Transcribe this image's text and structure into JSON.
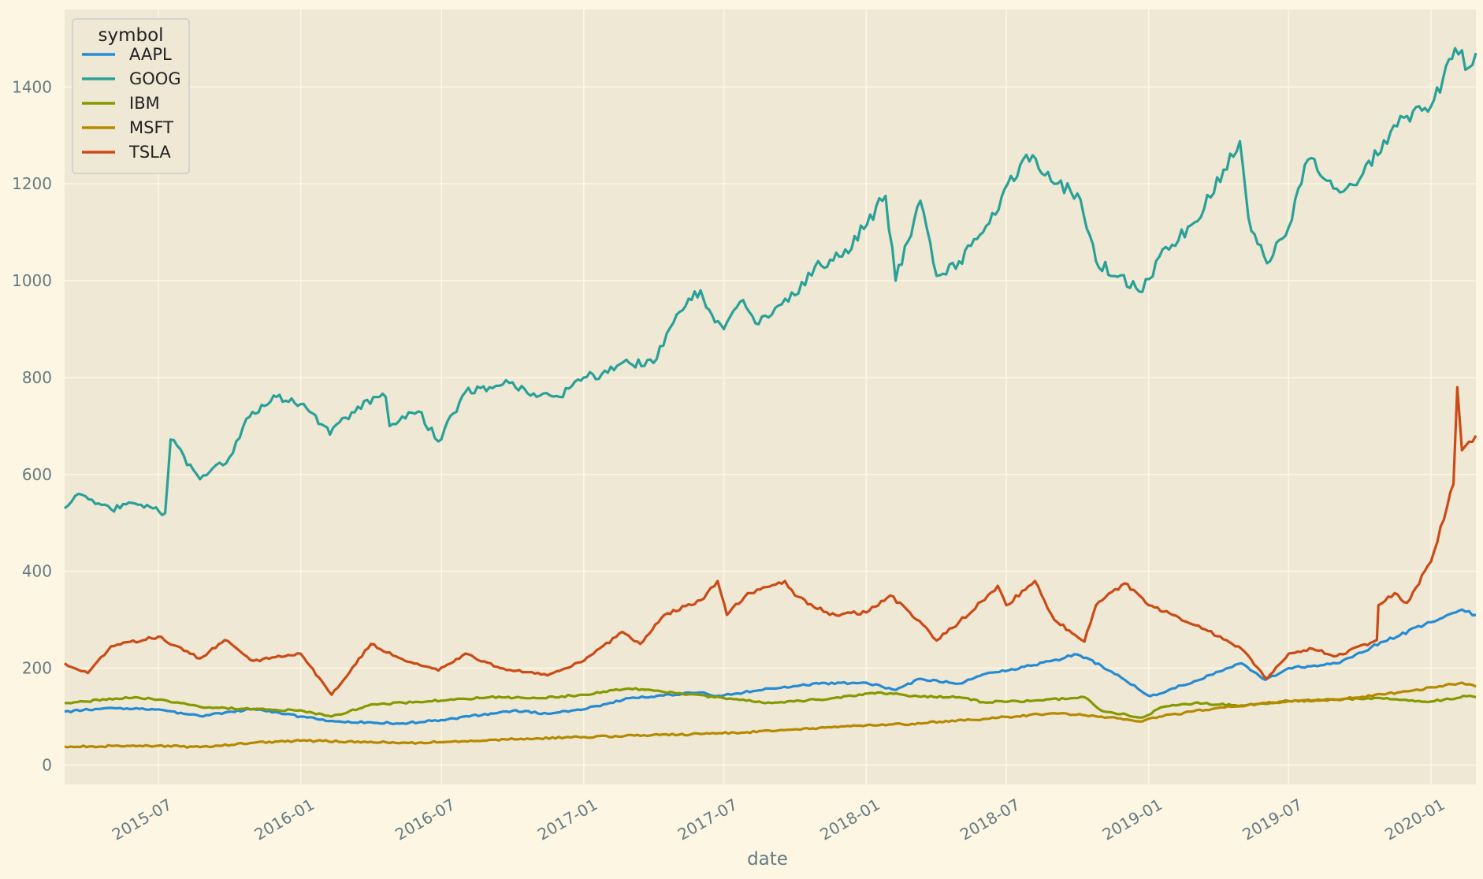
{
  "chart_data": {
    "type": "line",
    "xlabel": "date",
    "ylabel": "",
    "x_axis_type": "date",
    "xlim": [
      "2015-03-02",
      "2020-02-28"
    ],
    "ylim": [
      -40,
      1560
    ],
    "x_ticks": [
      "2015-07",
      "2016-01",
      "2016-07",
      "2017-01",
      "2017-07",
      "2018-01",
      "2018-07",
      "2019-01",
      "2019-07",
      "2020-01"
    ],
    "y_ticks": [
      "0",
      "200",
      "400",
      "600",
      "800",
      "1000",
      "1200",
      "1400"
    ],
    "grid": true,
    "legend": {
      "title": "symbol",
      "position": "top-left"
    },
    "colors": {
      "background": "#fdf6e3",
      "plot_background": "#eee8d5",
      "grid": "#fdf6e3"
    },
    "series": [
      {
        "name": "AAPL",
        "color": "#268bd2",
        "points": [
          [
            "2015-03-02",
            110
          ],
          [
            "2015-05-01",
            118
          ],
          [
            "2015-07-01",
            115
          ],
          [
            "2015-08-24",
            101
          ],
          [
            "2015-11-01",
            116
          ],
          [
            "2016-01-01",
            100
          ],
          [
            "2016-02-15",
            90
          ],
          [
            "2016-05-12",
            86
          ],
          [
            "2016-07-01",
            93
          ],
          [
            "2016-10-01",
            112
          ],
          [
            "2016-11-15",
            106
          ],
          [
            "2017-01-01",
            115
          ],
          [
            "2017-03-01",
            138
          ],
          [
            "2017-06-01",
            150
          ],
          [
            "2017-06-20",
            142
          ],
          [
            "2017-09-01",
            158
          ],
          [
            "2017-11-01",
            168
          ],
          [
            "2018-01-01",
            170
          ],
          [
            "2018-02-08",
            155
          ],
          [
            "2018-03-12",
            178
          ],
          [
            "2018-05-01",
            168
          ],
          [
            "2018-06-01",
            187
          ],
          [
            "2018-08-02",
            205
          ],
          [
            "2018-10-01",
            228
          ],
          [
            "2018-11-01",
            205
          ],
          [
            "2018-12-01",
            176
          ],
          [
            "2019-01-03",
            142
          ],
          [
            "2019-03-01",
            173
          ],
          [
            "2019-05-01",
            210
          ],
          [
            "2019-06-01",
            176
          ],
          [
            "2019-07-01",
            200
          ],
          [
            "2019-09-01",
            210
          ],
          [
            "2019-11-01",
            255
          ],
          [
            "2020-01-01",
            295
          ],
          [
            "2020-02-10",
            321
          ],
          [
            "2020-02-28",
            310
          ]
        ]
      },
      {
        "name": "GOOG",
        "color": "#2aa198",
        "points": [
          [
            "2015-03-02",
            530
          ],
          [
            "2015-03-20",
            560
          ],
          [
            "2015-04-15",
            540
          ],
          [
            "2015-05-01",
            528
          ],
          [
            "2015-06-01",
            540
          ],
          [
            "2015-07-10",
            520
          ],
          [
            "2015-07-17",
            672
          ],
          [
            "2015-08-24",
            590
          ],
          [
            "2015-10-01",
            635
          ],
          [
            "2015-10-23",
            715
          ],
          [
            "2015-12-01",
            760
          ],
          [
            "2016-01-01",
            745
          ],
          [
            "2016-02-01",
            700
          ],
          [
            "2016-02-08",
            682
          ],
          [
            "2016-03-15",
            740
          ],
          [
            "2016-04-20",
            760
          ],
          [
            "2016-04-25",
            700
          ],
          [
            "2016-06-01",
            730
          ],
          [
            "2016-06-27",
            668
          ],
          [
            "2016-08-01",
            770
          ],
          [
            "2016-09-01",
            780
          ],
          [
            "2016-10-01",
            790
          ],
          [
            "2016-11-01",
            760
          ],
          [
            "2016-12-01",
            760
          ],
          [
            "2017-01-01",
            800
          ],
          [
            "2017-02-01",
            810
          ],
          [
            "2017-03-01",
            830
          ],
          [
            "2017-04-01",
            830
          ],
          [
            "2017-05-01",
            930
          ],
          [
            "2017-06-01",
            980
          ],
          [
            "2017-06-12",
            940
          ],
          [
            "2017-07-01",
            900
          ],
          [
            "2017-07-26",
            960
          ],
          [
            "2017-08-15",
            910
          ],
          [
            "2017-09-01",
            930
          ],
          [
            "2017-10-01",
            970
          ],
          [
            "2017-10-27",
            1030
          ],
          [
            "2017-12-01",
            1050
          ],
          [
            "2018-01-26",
            1175
          ],
          [
            "2018-02-08",
            1000
          ],
          [
            "2018-03-12",
            1165
          ],
          [
            "2018-04-02",
            1010
          ],
          [
            "2018-05-01",
            1040
          ],
          [
            "2018-06-01",
            1100
          ],
          [
            "2018-07-27",
            1260
          ],
          [
            "2018-09-01",
            1200
          ],
          [
            "2018-10-01",
            1180
          ],
          [
            "2018-10-25",
            1040
          ],
          [
            "2018-12-24",
            977
          ],
          [
            "2019-01-15",
            1050
          ],
          [
            "2019-03-01",
            1120
          ],
          [
            "2019-04-29",
            1288
          ],
          [
            "2019-05-10",
            1130
          ],
          [
            "2019-06-03",
            1036
          ],
          [
            "2019-07-01",
            1110
          ],
          [
            "2019-07-26",
            1250
          ],
          [
            "2019-09-01",
            1190
          ],
          [
            "2019-10-01",
            1210
          ],
          [
            "2019-11-01",
            1290
          ],
          [
            "2019-12-01",
            1340
          ],
          [
            "2020-01-01",
            1360
          ],
          [
            "2020-02-01",
            1480
          ],
          [
            "2020-02-19",
            1440
          ],
          [
            "2020-02-28",
            1470
          ]
        ]
      },
      {
        "name": "IBM",
        "color": "#859900",
        "points": [
          [
            "2015-03-02",
            128
          ],
          [
            "2015-06-01",
            140
          ],
          [
            "2015-07-01",
            135
          ],
          [
            "2015-08-24",
            120
          ],
          [
            "2015-11-01",
            115
          ],
          [
            "2016-01-01",
            113
          ],
          [
            "2016-02-10",
            100
          ],
          [
            "2016-04-01",
            125
          ],
          [
            "2016-07-01",
            133
          ],
          [
            "2016-09-01",
            140
          ],
          [
            "2016-11-01",
            138
          ],
          [
            "2017-01-01",
            145
          ],
          [
            "2017-03-01",
            158
          ],
          [
            "2017-05-01",
            148
          ],
          [
            "2017-07-01",
            138
          ],
          [
            "2017-09-01",
            128
          ],
          [
            "2017-11-01",
            135
          ],
          [
            "2018-01-20",
            150
          ],
          [
            "2018-03-01",
            142
          ],
          [
            "2018-05-01",
            140
          ],
          [
            "2018-06-01",
            130
          ],
          [
            "2018-08-01",
            132
          ],
          [
            "2018-10-10",
            140
          ],
          [
            "2018-11-01",
            112
          ],
          [
            "2018-12-24",
            98
          ],
          [
            "2019-01-20",
            120
          ],
          [
            "2019-03-01",
            128
          ],
          [
            "2019-05-01",
            123
          ],
          [
            "2019-07-01",
            132
          ],
          [
            "2019-09-01",
            135
          ],
          [
            "2019-11-01",
            137
          ],
          [
            "2020-01-01",
            131
          ],
          [
            "2020-02-20",
            143
          ],
          [
            "2020-02-28",
            140
          ]
        ]
      },
      {
        "name": "MSFT",
        "color": "#b58900",
        "points": [
          [
            "2015-03-02",
            38
          ],
          [
            "2015-07-01",
            40
          ],
          [
            "2015-08-24",
            37
          ],
          [
            "2015-11-01",
            46
          ],
          [
            "2016-01-01",
            50
          ],
          [
            "2016-06-01",
            46
          ],
          [
            "2016-09-01",
            52
          ],
          [
            "2017-01-01",
            58
          ],
          [
            "2017-06-01",
            64
          ],
          [
            "2017-09-01",
            70
          ],
          [
            "2018-01-01",
            82
          ],
          [
            "2018-03-01",
            85
          ],
          [
            "2018-06-01",
            95
          ],
          [
            "2018-09-01",
            107
          ],
          [
            "2018-11-01",
            100
          ],
          [
            "2018-12-24",
            90
          ],
          [
            "2019-01-15",
            100
          ],
          [
            "2019-04-01",
            118
          ],
          [
            "2019-07-01",
            132
          ],
          [
            "2019-09-01",
            135
          ],
          [
            "2019-12-01",
            152
          ],
          [
            "2020-02-10",
            170
          ],
          [
            "2020-02-28",
            162
          ]
        ]
      },
      {
        "name": "TSLA",
        "color": "#cb4b16",
        "points": [
          [
            "2015-03-02",
            210
          ],
          [
            "2015-04-01",
            190
          ],
          [
            "2015-05-01",
            245
          ],
          [
            "2015-07-01",
            265
          ],
          [
            "2015-08-24",
            220
          ],
          [
            "2015-09-25",
            258
          ],
          [
            "2015-11-01",
            215
          ],
          [
            "2016-01-01",
            230
          ],
          [
            "2016-02-10",
            145
          ],
          [
            "2016-04-01",
            250
          ],
          [
            "2016-05-15",
            215
          ],
          [
            "2016-06-27",
            195
          ],
          [
            "2016-08-01",
            230
          ],
          [
            "2016-09-15",
            200
          ],
          [
            "2016-11-15",
            185
          ],
          [
            "2017-01-01",
            215
          ],
          [
            "2017-02-20",
            275
          ],
          [
            "2017-03-15",
            250
          ],
          [
            "2017-04-15",
            310
          ],
          [
            "2017-06-01",
            340
          ],
          [
            "2017-06-23",
            380
          ],
          [
            "2017-07-05",
            310
          ],
          [
            "2017-08-01",
            355
          ],
          [
            "2017-09-18",
            380
          ],
          [
            "2017-10-01",
            350
          ],
          [
            "2017-11-15",
            310
          ],
          [
            "2018-01-01",
            315
          ],
          [
            "2018-02-01",
            350
          ],
          [
            "2018-03-15",
            290
          ],
          [
            "2018-04-02",
            257
          ],
          [
            "2018-05-01",
            295
          ],
          [
            "2018-06-20",
            370
          ],
          [
            "2018-07-01",
            330
          ],
          [
            "2018-08-07",
            380
          ],
          [
            "2018-09-01",
            300
          ],
          [
            "2018-10-10",
            255
          ],
          [
            "2018-10-25",
            330
          ],
          [
            "2018-12-01",
            375
          ],
          [
            "2019-01-01",
            330
          ],
          [
            "2019-02-01",
            310
          ],
          [
            "2019-03-15",
            280
          ],
          [
            "2019-05-01",
            240
          ],
          [
            "2019-06-03",
            178
          ],
          [
            "2019-07-01",
            230
          ],
          [
            "2019-08-01",
            240
          ],
          [
            "2019-09-01",
            225
          ],
          [
            "2019-10-23",
            258
          ],
          [
            "2019-10-25",
            330
          ],
          [
            "2019-11-15",
            355
          ],
          [
            "2019-12-01",
            335
          ],
          [
            "2020-01-01",
            420
          ],
          [
            "2020-01-30",
            580
          ],
          [
            "2020-02-04",
            780
          ],
          [
            "2020-02-10",
            650
          ],
          [
            "2020-02-28",
            680
          ]
        ]
      }
    ]
  }
}
